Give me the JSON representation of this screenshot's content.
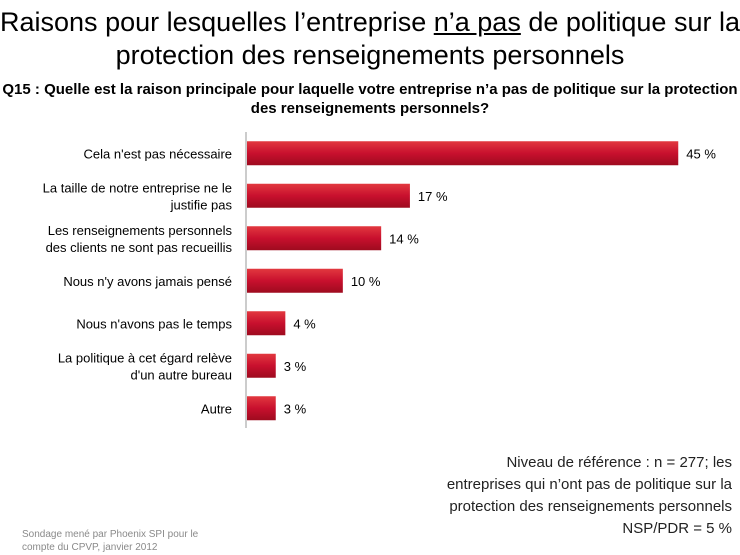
{
  "title": {
    "part1": "Raisons pour lesquelles l’entreprise ",
    "underlined": "n’a pas",
    "part2": " de politique sur la protection des renseignements personnels"
  },
  "question": "Q15 : Quelle est la raison principale pour laquelle votre entreprise n’a pas de politique sur la protection des renseignements personnels?",
  "chart_data": {
    "type": "bar",
    "orientation": "horizontal",
    "categories": [
      "Cela n'est pas nécessaire",
      "La taille de notre entreprise ne le justifie pas",
      "Les renseignements personnels des clients ne sont pas recueillis",
      "Nous n'y avons jamais pensé",
      "Nous n'avons pas le temps",
      "La politique à cet égard relève d'un autre bureau",
      "Autre"
    ],
    "category_lines": [
      [
        "Cela n'est pas nécessaire"
      ],
      [
        "La taille de notre entreprise ne le",
        "justifie pas"
      ],
      [
        "Les renseignements personnels",
        "des clients ne sont pas recueillis"
      ],
      [
        "Nous n'y avons jamais pensé"
      ],
      [
        "Nous n'avons pas le temps"
      ],
      [
        "La politique à cet égard relève",
        "d'un autre bureau"
      ],
      [
        "Autre"
      ]
    ],
    "values": [
      45,
      17,
      14,
      10,
      4,
      3,
      3
    ],
    "value_labels": [
      "45 %",
      "17 %",
      "14 %",
      "10 %",
      "4 %",
      "3 %",
      "3 %"
    ],
    "unit": "%",
    "xlim": [
      0,
      48
    ],
    "bar_color": "#c8102e",
    "grid": false
  },
  "base_note": {
    "line1": "Niveau de référence : n = 277; les",
    "line2": "entreprises qui n’ont pas de politique sur la",
    "line3": "protection des renseignements personnels",
    "line4": "NSP/PDR = 5 %"
  },
  "source": {
    "line1": "Sondage mené par Phoenix SPI pour le",
    "line2": "compte du CPVP, janvier 2012"
  }
}
